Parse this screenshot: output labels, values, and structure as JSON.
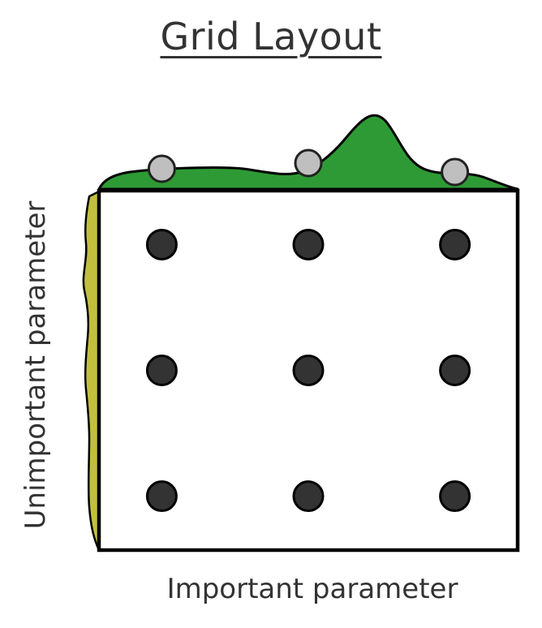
{
  "title": "Grid Layout",
  "x_label": "Important parameter",
  "y_label": "Unimportant parameter",
  "colors": {
    "important_density": "#2e9a35",
    "unimportant_density": "#c2bf3e",
    "grid_point": "#333333",
    "projected_point": "#bfbfbf",
    "frame": "#000000"
  },
  "grid": {
    "columns": 3,
    "rows": 3,
    "x_levels": [
      0.15,
      0.5,
      0.85
    ],
    "y_levels": [
      0.15,
      0.5,
      0.85
    ]
  }
}
